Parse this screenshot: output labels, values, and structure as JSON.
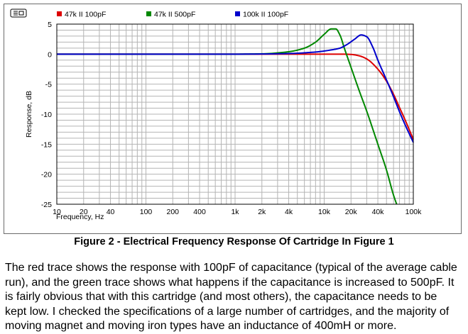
{
  "caption": "Figure 2 - Electrical Frequency Response Of Cartridge In Figure 1",
  "paragraph": "The red trace shows the response with 100pF of capacitance (typical of the average cable run), and the green trace shows what happens if the capacitance is increased to 500pF.  It is fairly obvious that with this cartridge (and most others), the capacitance needs to be kept low.  I checked the specifications of a large number of cartridges, and the majority of moving magnet and moving iron types have an inductance of 400mH or more.",
  "chart_data": {
    "type": "line",
    "title": "",
    "xlabel": "Frequency, Hz",
    "ylabel": "Response, dB",
    "xscale": "log",
    "xlim": [
      10,
      100000
    ],
    "ylim": [
      -25,
      5
    ],
    "grid": true,
    "legend_position": "top",
    "x_ticks": [
      {
        "v": 10,
        "label": "10"
      },
      {
        "v": 20,
        "label": "20"
      },
      {
        "v": 40,
        "label": "40"
      },
      {
        "v": 100,
        "label": "100"
      },
      {
        "v": 200,
        "label": "200"
      },
      {
        "v": 400,
        "label": "400"
      },
      {
        "v": 1000,
        "label": "1k"
      },
      {
        "v": 2000,
        "label": "2k"
      },
      {
        "v": 4000,
        "label": "4k"
      },
      {
        "v": 10000,
        "label": "10k"
      },
      {
        "v": 20000,
        "label": "20k"
      },
      {
        "v": 40000,
        "label": "40k"
      },
      {
        "v": 100000,
        "label": "100k"
      }
    ],
    "y_ticks": [
      5,
      0,
      -5,
      -10,
      -15,
      -20,
      -25
    ],
    "series": [
      {
        "name": "47k II 100pF",
        "color": "#dd0000",
        "x": [
          10,
          100,
          1000,
          5000,
          10000,
          15000,
          20000,
          25000,
          30000,
          40000,
          50000,
          60000,
          70000,
          80000,
          100000
        ],
        "y": [
          0,
          0,
          0,
          0,
          0,
          0,
          -0.05,
          -0.3,
          -0.8,
          -2.5,
          -4.5,
          -6.7,
          -8.9,
          -10.8,
          -14.2
        ]
      },
      {
        "name": "47k II 500pF",
        "color": "#008800",
        "x": [
          10,
          100,
          1000,
          2000,
          4000,
          6000,
          8000,
          10000,
          12000,
          13500,
          15000,
          17000,
          20000,
          25000,
          30000,
          40000,
          50000,
          60000,
          65000
        ],
        "y": [
          0,
          0,
          0,
          0.05,
          0.4,
          1.0,
          2.0,
          3.3,
          4.2,
          4.2,
          3.2,
          0.8,
          -2.2,
          -6.3,
          -9.5,
          -15.0,
          -19.3,
          -23.5,
          -25
        ]
      },
      {
        "name": "100k II 100pF",
        "color": "#0000cc",
        "x": [
          10,
          100,
          1000,
          2000,
          4000,
          8000,
          12000,
          15000,
          18000,
          22000,
          26000,
          30000,
          35000,
          40000,
          50000,
          60000,
          70000,
          80000,
          100000
        ],
        "y": [
          0,
          0,
          0,
          0.02,
          0.1,
          0.35,
          0.7,
          1.0,
          1.6,
          2.5,
          3.2,
          2.9,
          1.2,
          -1.0,
          -4.3,
          -7.1,
          -9.6,
          -11.6,
          -14.7
        ]
      }
    ]
  }
}
